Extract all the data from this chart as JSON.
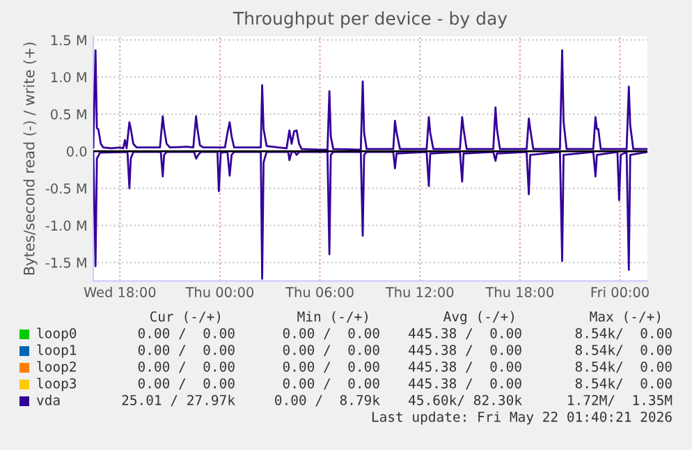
{
  "chart_data": {
    "type": "line",
    "title": "Throughput per device - by day",
    "ylabel": "Bytes/second read (-) / write (+)",
    "xlim": [
      "2026-05-20T16:24",
      "2026-05-22T01:39"
    ],
    "xticks": [
      {
        "value": "2026-05-20T18:00",
        "label": "Wed 18:00"
      },
      {
        "value": "2026-05-21T00:00",
        "label": "Thu 00:00"
      },
      {
        "value": "2026-05-21T06:00",
        "label": "Thu 06:00"
      },
      {
        "value": "2026-05-21T12:00",
        "label": "Thu 12:00"
      },
      {
        "value": "2026-05-21T18:00",
        "label": "Thu 18:00"
      },
      {
        "value": "2026-05-22T00:00",
        "label": "Fri 00:00"
      }
    ],
    "ylim": [
      -1.75,
      1.55
    ],
    "yticks": [
      {
        "value": -1.5,
        "label": "-1.5 M"
      },
      {
        "value": -1.0,
        "label": "-1.0 M"
      },
      {
        "value": -0.5,
        "label": "-0.5 M"
      },
      {
        "value": 0,
        "label": "0.0"
      },
      {
        "value": 0.5,
        "label": "0.5 M"
      },
      {
        "value": 1.0,
        "label": "1.0 M"
      },
      {
        "value": 1.5,
        "label": "1.5 M"
      }
    ],
    "grid": true,
    "legend": "bottom",
    "line_style": "solid",
    "marker": "none",
    "ref_lines": [
      {
        "axis": "y",
        "value": 0,
        "color": "#000000"
      }
    ],
    "series": [
      {
        "name": "loop0",
        "color": "#00cc00"
      },
      {
        "name": "loop1",
        "color": "#0066b3"
      },
      {
        "name": "loop2",
        "color": "#ff8000"
      },
      {
        "name": "loop3",
        "color": "#ffcc00"
      },
      {
        "name": "vda",
        "color": "#330099",
        "x": [
          "2026-05-20T16:24",
          "2026-05-20T16:32",
          "2026-05-20T16:37",
          "2026-05-20T16:42",
          "2026-05-20T16:51",
          "2026-05-20T17:00",
          "2026-05-20T17:30",
          "2026-05-20T18:00",
          "2026-05-20T18:12",
          "2026-05-20T18:18",
          "2026-05-20T18:24",
          "2026-05-20T18:34",
          "2026-05-20T18:39",
          "2026-05-20T18:48",
          "2026-05-20T19:00",
          "2026-05-20T20:00",
          "2026-05-20T20:24",
          "2026-05-20T20:34",
          "2026-05-20T20:39",
          "2026-05-20T20:48",
          "2026-05-20T21:00",
          "2026-05-20T22:00",
          "2026-05-20T22:24",
          "2026-05-20T22:34",
          "2026-05-20T22:39",
          "2026-05-20T22:48",
          "2026-05-20T23:00",
          "2026-05-21T00:00",
          "2026-05-21T00:18",
          "2026-05-21T00:27",
          "2026-05-21T00:35",
          "2026-05-21T00:42",
          "2026-05-21T00:51",
          "2026-05-21T02:00",
          "2026-05-21T02:27",
          "2026-05-21T02:32",
          "2026-05-21T02:37",
          "2026-05-21T02:48",
          "2026-05-21T03:30",
          "2026-05-21T04:00",
          "2026-05-21T04:10",
          "2026-05-21T04:18",
          "2026-05-21T04:27",
          "2026-05-21T04:36",
          "2026-05-21T04:45",
          "2026-05-21T04:54",
          "2026-05-21T06:00",
          "2026-05-21T06:27",
          "2026-05-21T06:34",
          "2026-05-21T06:39",
          "2026-05-21T06:48",
          "2026-05-21T08:27",
          "2026-05-21T08:34",
          "2026-05-21T08:39",
          "2026-05-21T08:48",
          "2026-05-21T10:24",
          "2026-05-21T10:30",
          "2026-05-21T10:36",
          "2026-05-21T10:48",
          "2026-05-21T12:24",
          "2026-05-21T12:32",
          "2026-05-21T12:37",
          "2026-05-21T12:48",
          "2026-05-21T14:24",
          "2026-05-21T14:32",
          "2026-05-21T14:37",
          "2026-05-21T14:48",
          "2026-05-21T16:24",
          "2026-05-21T16:32",
          "2026-05-21T16:37",
          "2026-05-21T16:48",
          "2026-05-21T18:24",
          "2026-05-21T18:32",
          "2026-05-21T18:37",
          "2026-05-21T18:48",
          "2026-05-21T20:24",
          "2026-05-21T20:32",
          "2026-05-21T20:37",
          "2026-05-21T20:48",
          "2026-05-21T22:24",
          "2026-05-21T22:32",
          "2026-05-21T22:37",
          "2026-05-21T22:42",
          "2026-05-21T22:51",
          "2026-05-22T00:24",
          "2026-05-22T00:32",
          "2026-05-22T00:37",
          "2026-05-22T00:48",
          "2026-05-22T01:39"
        ],
        "values": [
          0.05,
          1.36,
          0.31,
          0.3,
          0.1,
          0.05,
          0.04,
          0.05,
          0.04,
          0.15,
          0.04,
          0.39,
          0.3,
          0.1,
          0.05,
          0.05,
          0.05,
          0.47,
          0.3,
          0.1,
          0.05,
          0.06,
          0.05,
          0.47,
          0.3,
          0.08,
          0.05,
          0.05,
          0.05,
          0.25,
          0.39,
          0.2,
          0.05,
          0.05,
          0.05,
          0.89,
          0.3,
          0.07,
          0.05,
          0.04,
          0.28,
          0.1,
          0.27,
          0.28,
          0.1,
          0.03,
          0.02,
          0.02,
          0.81,
          0.2,
          0.03,
          0.02,
          0.94,
          0.25,
          0.03,
          0.03,
          0.41,
          0.25,
          0.03,
          0.03,
          0.46,
          0.25,
          0.03,
          0.03,
          0.46,
          0.3,
          0.03,
          0.03,
          0.59,
          0.3,
          0.03,
          0.03,
          0.44,
          0.3,
          0.03,
          0.03,
          1.36,
          0.4,
          0.03,
          0.03,
          0.46,
          0.3,
          0.3,
          0.03,
          0.03,
          0.87,
          0.35,
          0.03,
          0.03
        ]
      },
      {
        "color": "#330099",
        "x": [
          "2026-05-20T16:24",
          "2026-05-20T16:32",
          "2026-05-20T16:37",
          "2026-05-20T16:48",
          "2026-05-20T18:27",
          "2026-05-20T18:34",
          "2026-05-20T18:39",
          "2026-05-20T18:48",
          "2026-05-20T20:27",
          "2026-05-20T20:34",
          "2026-05-20T20:39",
          "2026-05-20T20:48",
          "2026-05-20T22:27",
          "2026-05-20T22:34",
          "2026-05-20T22:42",
          "2026-05-20T22:51",
          "2026-05-20T23:51",
          "2026-05-20T23:56",
          "2026-05-21T00:03",
          "2026-05-21T00:27",
          "2026-05-21T00:35",
          "2026-05-21T00:42",
          "2026-05-21T00:51",
          "2026-05-21T02:27",
          "2026-05-21T02:32",
          "2026-05-21T02:37",
          "2026-05-21T02:48",
          "2026-05-21T04:06",
          "2026-05-21T04:10",
          "2026-05-21T04:18",
          "2026-05-21T04:30",
          "2026-05-21T04:36",
          "2026-05-21T04:45",
          "2026-05-21T06:27",
          "2026-05-21T06:34",
          "2026-05-21T06:39",
          "2026-05-21T06:48",
          "2026-05-21T08:27",
          "2026-05-21T08:34",
          "2026-05-21T08:39",
          "2026-05-21T08:48",
          "2026-05-21T10:24",
          "2026-05-21T10:30",
          "2026-05-21T10:36",
          "2026-05-21T12:24",
          "2026-05-21T12:32",
          "2026-05-21T12:37",
          "2026-05-21T14:24",
          "2026-05-21T14:32",
          "2026-05-21T14:37",
          "2026-05-21T16:24",
          "2026-05-21T16:32",
          "2026-05-21T16:37",
          "2026-05-21T18:24",
          "2026-05-21T18:32",
          "2026-05-21T18:37",
          "2026-05-21T20:24",
          "2026-05-21T20:32",
          "2026-05-21T20:37",
          "2026-05-21T22:24",
          "2026-05-21T22:32",
          "2026-05-21T22:37",
          "2026-05-21T23:51",
          "2026-05-21T23:57",
          "2026-05-22T00:03",
          "2026-05-22T00:24",
          "2026-05-22T00:32",
          "2026-05-22T00:37",
          "2026-05-22T01:39"
        ],
        "values": [
          -0.01,
          -1.55,
          -0.1,
          -0.02,
          -0.01,
          -0.5,
          -0.1,
          -0.01,
          -0.01,
          -0.34,
          -0.05,
          -0.01,
          -0.01,
          -0.1,
          -0.05,
          -0.01,
          -0.01,
          -0.54,
          -0.02,
          -0.01,
          -0.33,
          -0.05,
          -0.01,
          -0.01,
          -1.72,
          -0.15,
          -0.01,
          -0.01,
          -0.12,
          -0.01,
          -0.01,
          -0.05,
          -0.01,
          -0.01,
          -1.39,
          -0.05,
          -0.01,
          -0.01,
          -1.14,
          -0.05,
          -0.01,
          -0.01,
          -0.23,
          -0.03,
          -0.01,
          -0.47,
          -0.03,
          -0.01,
          -0.41,
          -0.03,
          -0.01,
          -0.13,
          -0.03,
          -0.01,
          -0.58,
          -0.05,
          -0.01,
          -1.48,
          -0.05,
          -0.01,
          -0.34,
          -0.05,
          -0.01,
          -0.66,
          -0.05,
          -0.01,
          -1.6,
          -0.05,
          -0.01
        ]
      }
    ],
    "annotations": [
      "Cur (-/+)",
      "Min (-/+)",
      "Avg (-/+)",
      "Max (-/+)",
      "0.00 /  0.00",
      "0.00 /  0.00",
      "445.38 /  0.00",
      "8.54k/  0.00",
      "0.00 /  0.00",
      "0.00 /  0.00",
      "445.38 /  0.00",
      "8.54k/  0.00",
      "0.00 /  0.00",
      "0.00 /  0.00",
      "445.38 /  0.00",
      "8.54k/  0.00",
      "0.00 /  0.00",
      "0.00 /  0.00",
      "445.38 /  0.00",
      "8.54k/  0.00",
      "25.01 / 27.97k",
      "0.00 /  8.79k",
      "45.60k/ 82.30k",
      "1.72M/  1.35M",
      "Last update: Fri May 22 01:40:21 2026"
    ]
  }
}
